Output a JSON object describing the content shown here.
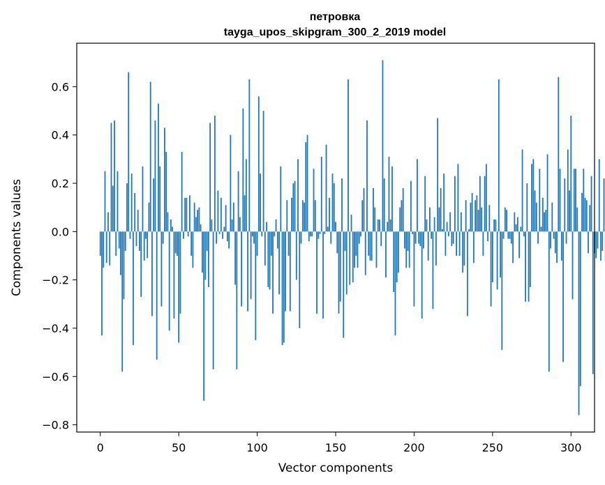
{
  "chart_data": {
    "type": "bar",
    "title_line1": "петровка",
    "title_line2": "tayga_upos_skipgram_300_2_2019 model",
    "xlabel": "Vector components",
    "ylabel": "Components values",
    "xlim": [
      -15,
      315
    ],
    "ylim": [
      -0.83,
      0.78
    ],
    "xticks": [
      0,
      50,
      100,
      150,
      200,
      250,
      300
    ],
    "xtick_labels": [
      "0",
      "50",
      "100",
      "150",
      "200",
      "250",
      "300"
    ],
    "yticks": [
      -0.8,
      -0.6,
      -0.4,
      -0.2,
      0.0,
      0.2,
      0.4,
      0.6
    ],
    "ytick_labels": [
      "−0.8",
      "−0.6",
      "−0.4",
      "−0.2",
      "0.0",
      "0.2",
      "0.4",
      "0.6"
    ],
    "bar_color": "#1f77b4",
    "values": [
      -0.1,
      -0.43,
      -0.15,
      0.25,
      -0.13,
      0.08,
      -0.14,
      0.45,
      0.19,
      0.46,
      -0.1,
      0.25,
      -0.07,
      -0.18,
      -0.58,
      -0.28,
      -0.08,
      0.2,
      0.66,
      -0.03,
      0.24,
      -0.47,
      0.16,
      -0.06,
      0.09,
      -0.08,
      -0.27,
      0.27,
      -0.12,
      -0.03,
      -0.11,
      0.12,
      0.62,
      -0.35,
      0.22,
      0.46,
      -0.53,
      0.53,
      0.27,
      -0.31,
      -0.05,
      0.43,
      0.33,
      0.08,
      -0.41,
      0.05,
      0.02,
      -0.36,
      -0.09,
      -0.1,
      -0.46,
      -0.34,
      0.33,
      -0.03,
      0.14,
      0.14,
      -0.02,
      0.15,
      -0.1,
      -0.15,
      0.12,
      0.06,
      0.09,
      0.1,
      0.03,
      -0.17,
      -0.7,
      -0.2,
      -0.08,
      -0.23,
      0.45,
      0.05,
      -0.57,
      0.48,
      -0.05,
      0.17,
      -0.01,
      0.14,
      -0.03,
      0.02,
      0.11,
      -0.04,
      -0.07,
      0.4,
      0.05,
      0.12,
      -0.22,
      -0.57,
      0.25,
      0.06,
      -0.31,
      0.51,
      0.15,
      0.3,
      -0.33,
      0.63,
      -0.28,
      -0.02,
      -0.05,
      -0.45,
      -0.1,
      0.56,
      0.24,
      -0.02,
      0.5,
      -0.14,
      0.04,
      -0.23,
      -0.24,
      -0.1,
      -0.34,
      -0.02,
      0.05,
      -0.07,
      -0.26,
      0.27,
      -0.47,
      -0.46,
      -0.33,
      0.13,
      -0.1,
      -0.33,
      0.14,
      0.2,
      0.21,
      -0.2,
      0.3,
      -0.4,
      -0.05,
      0.13,
      0.12,
      0.37,
      0.4,
      -0.04,
      -0.02,
      -0.02,
      0.26,
      0.13,
      -0.34,
      -0.03,
      -0.01,
      0.31,
      -0.36,
      -0.01,
      0.36,
      0.02,
      0.14,
      -0.05,
      0.24,
      0.2,
      0.04,
      -0.09,
      -0.34,
      -0.29,
      0.22,
      -0.44,
      -0.08,
      -0.26,
      0.63,
      -0.22,
      0.07,
      -0.21,
      -0.15,
      -0.1,
      -0.15,
      -0.05,
      -0.02,
      0.13,
      0.18,
      -0.18,
      0.46,
      -0.1,
      -0.12,
      -0.12,
      0.18,
      0.1,
      -0.15,
      0.05,
      0.05,
      -0.06,
      0.71,
      0.22,
      -0.19,
      0.04,
      0.31,
      0.05,
      0.27,
      -0.25,
      -0.43,
      -0.21,
      -0.17,
      0.1,
      0.13,
      0.18,
      -0.07,
      -0.15,
      -0.08,
      -0.15,
      0.21,
      -0.01,
      -0.31,
      -0.05,
      0.3,
      -0.05,
      -0.06,
      -0.36,
      -0.07,
      0.23,
      0.05,
      -0.12,
      0.1,
      -0.03,
      -0.32,
      0.06,
      -0.14,
      0.47,
      0.1,
      0.18,
      0.01,
      0.24,
      -0.1,
      0.04,
      -0.02,
      0.08,
      -0.06,
      -0.05,
      0.23,
      -0.1,
      0.28,
      -0.1,
      0.08,
      -0.17,
      -0.14,
      0.13,
      -0.35,
      0.01,
      0.12,
      0.16,
      -0.13,
      0.13,
      0.15,
      0.09,
      0.23,
      0.1,
      -0.1,
      0.23,
      0.28,
      -0.04,
      0.11,
      -0.31,
      -0.21,
      0.05,
      0.05,
      -0.24,
      0.63,
      -0.19,
      -0.49,
      -0.03,
      0.1,
      0.09,
      -0.03,
      -0.03,
      -0.05,
      -0.13,
      0.08,
      0.03,
      0.06,
      -0.11,
      0.02,
      0.34,
      -0.02,
      -0.29,
      0.2,
      -0.29,
      -0.23,
      0.28,
      0.3,
      0.17,
      0.12,
      -0.05,
      0.26,
      0.02,
      0.14,
      0.08,
      0.09,
      0.32,
      -0.58,
      -0.07,
      0.12,
      -0.03,
      -0.09,
      -0.13,
      0.64,
      0.26,
      -0.12,
      -0.54,
      0.22,
      -0.05,
      0.34,
      0.17,
      0.48,
      -0.28,
      0.26,
      0.26,
      0.1,
      -0.76,
      -0.64,
      0.16,
      0.26,
      0.14,
      0.13,
      -0.09,
      0.11,
      0.23,
      -0.59,
      -0.09,
      -0.11,
      -0.07,
      0.3,
      -0.12,
      -0.08,
      0.22,
      -0.12
    ]
  }
}
